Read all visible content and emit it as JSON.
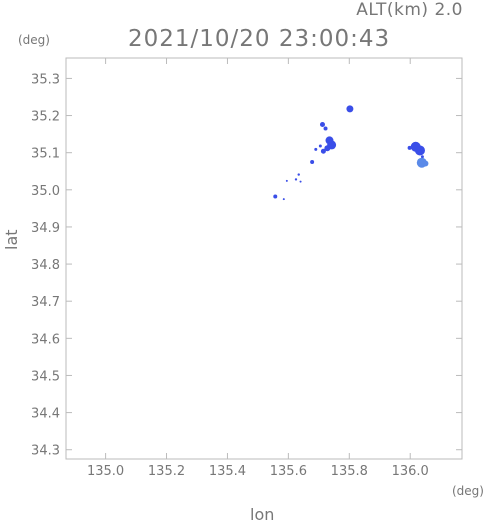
{
  "header": {
    "alt_label": "ALT(km) 2.0",
    "datetime": "2021/10/20 23:00:43",
    "y_unit": "(deg)",
    "x_unit": "(deg)"
  },
  "chart_data": {
    "type": "scatter",
    "title": "2021/10/20 23:00:43",
    "xlabel": "lon",
    "ylabel": "lat",
    "xlim": [
      134.87,
      136.17
    ],
    "ylim": [
      34.275,
      35.355
    ],
    "xticks": [
      "135.0",
      "135.2",
      "135.4",
      "135.6",
      "135.8",
      "136.0"
    ],
    "yticks": [
      "34.3",
      "34.4",
      "34.5",
      "34.6",
      "34.7",
      "34.8",
      "34.9",
      "35.0",
      "35.1",
      "35.2",
      "35.3"
    ],
    "grid": false,
    "colors": {
      "dark": "#3a4ee8",
      "light": "#5a8ae8",
      "frame": "#bbbbbb",
      "text": "#777777"
    },
    "series": [
      {
        "points": [
          {
            "x": 135.802,
            "y": 35.218,
            "r": 3.5
          },
          {
            "x": 135.712,
            "y": 35.176,
            "r": 2.5
          },
          {
            "x": 135.722,
            "y": 35.165,
            "r": 2
          },
          {
            "x": 135.735,
            "y": 35.133,
            "r": 4
          },
          {
            "x": 135.742,
            "y": 35.121,
            "r": 4.5
          },
          {
            "x": 135.728,
            "y": 35.112,
            "r": 3
          },
          {
            "x": 135.715,
            "y": 35.104,
            "r": 2.5
          },
          {
            "x": 135.705,
            "y": 35.118,
            "r": 1.5
          },
          {
            "x": 135.69,
            "y": 35.109,
            "r": 1.5
          },
          {
            "x": 135.678,
            "y": 35.075,
            "r": 2
          },
          {
            "x": 135.634,
            "y": 35.041,
            "r": 1.2
          },
          {
            "x": 135.625,
            "y": 35.028,
            "r": 1.2
          },
          {
            "x": 135.64,
            "y": 35.022,
            "r": 1
          },
          {
            "x": 135.595,
            "y": 35.024,
            "r": 1
          },
          {
            "x": 135.557,
            "y": 34.982,
            "r": 2
          },
          {
            "x": 135.585,
            "y": 34.975,
            "r": 1
          },
          {
            "x": 136.018,
            "y": 35.116,
            "r": 5
          },
          {
            "x": 136.032,
            "y": 35.106,
            "r": 5
          },
          {
            "x": 135.998,
            "y": 35.113,
            "r": 2
          },
          {
            "x": 136.04,
            "y": 35.089,
            "r": 1.5
          }
        ]
      },
      {
        "points": [
          {
            "x": 136.038,
            "y": 35.073,
            "r": 5
          },
          {
            "x": 136.05,
            "y": 35.071,
            "r": 3
          }
        ]
      }
    ]
  }
}
